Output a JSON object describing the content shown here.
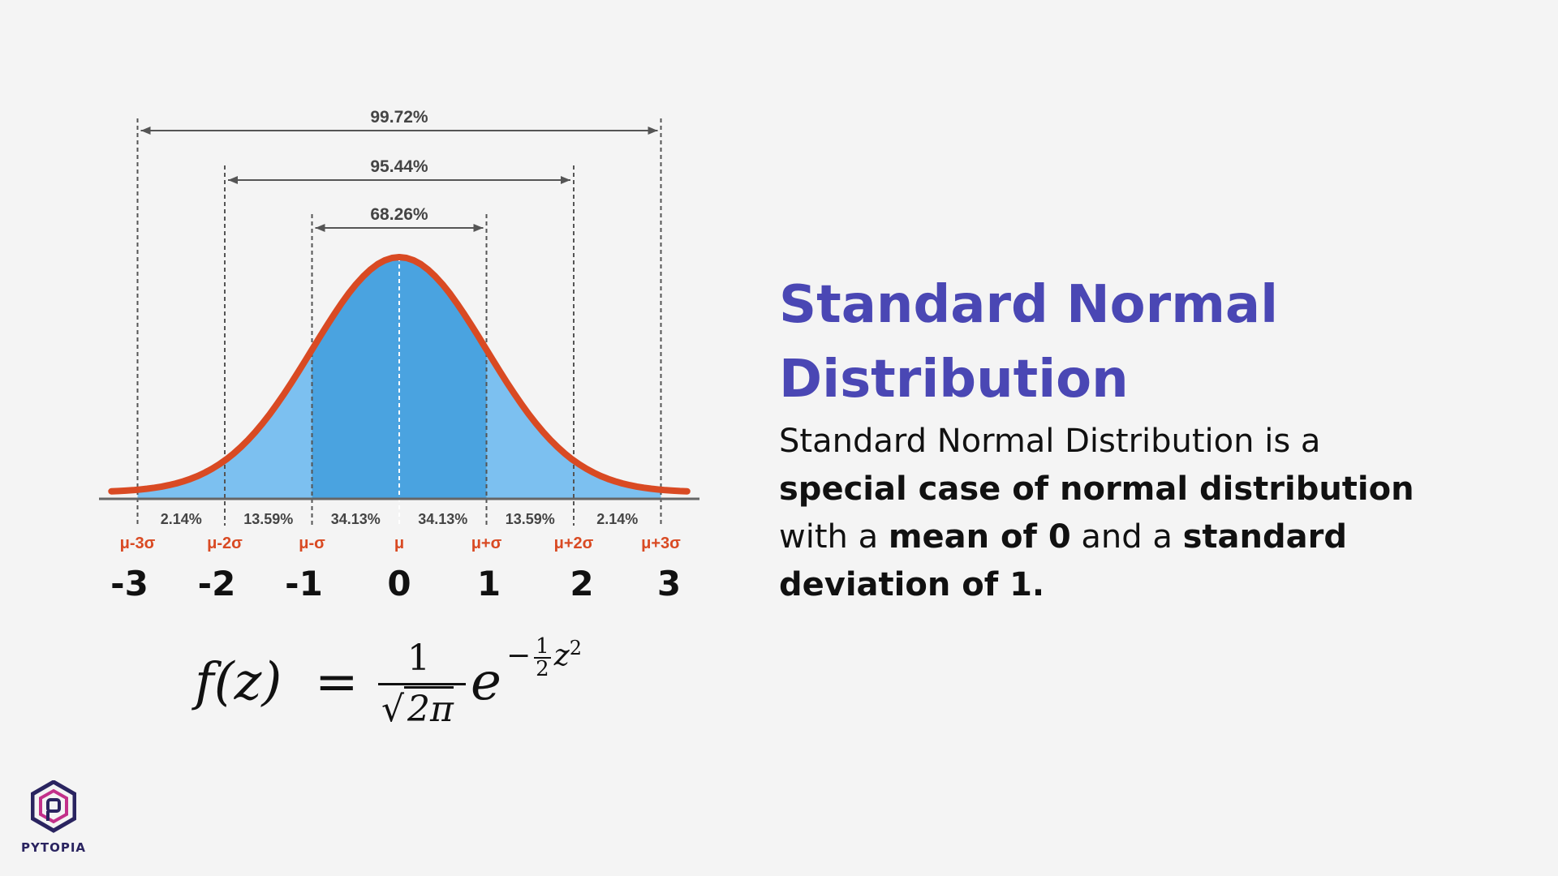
{
  "chart_data": {
    "type": "area",
    "description_curve": "normal pdf",
    "z_ticks": [
      "-3",
      "-2",
      "-1",
      "0",
      "1",
      "2",
      "3"
    ],
    "sigma_labels": [
      "μ-3σ",
      "μ-2σ",
      "μ-σ",
      "μ",
      "μ+σ",
      "μ+2σ",
      "μ+3σ"
    ],
    "region_percentages": [
      "2.14%",
      "13.59%",
      "34.13%",
      "34.13%",
      "13.59%",
      "2.14%"
    ],
    "ranges": [
      {
        "label": "68.26%",
        "from": -1,
        "to": 1
      },
      {
        "label": "95.44%",
        "from": -2,
        "to": 2
      },
      {
        "label": "99.72%",
        "from": -3,
        "to": 3
      }
    ],
    "xlim": [
      -3.3,
      3.3
    ],
    "colors": {
      "curve": "#d94a23",
      "inner": "#4aa3e0",
      "outer": "#7cc0f0",
      "axis": "#666666"
    }
  },
  "formula": {
    "lhs": "f(z)",
    "eq": "=",
    "num": "1",
    "den_root": "√",
    "den_body": "2π",
    "base": "e",
    "exp_sign": "−",
    "exp_num": "1",
    "exp_den": "2",
    "exp_var": "z",
    "exp_pow": "2"
  },
  "title": "Standard Normal Distribution",
  "description": {
    "p1": "Standard Normal Distribution is a ",
    "b1": "special case of normal distribution",
    "p2": " with a ",
    "b2": "mean of 0",
    "p3": " and a ",
    "b3": "standard deviation of 1."
  },
  "logo": {
    "text": "PYTOPIA",
    "icon": "pytopia-logo-icon"
  }
}
